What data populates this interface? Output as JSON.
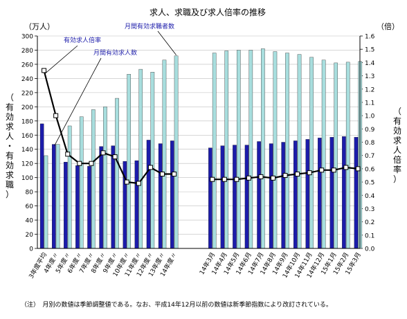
{
  "chart_data": {
    "type": "bar",
    "title": "求人、求職及び求人倍率の推移",
    "left_unit": "（万人）",
    "right_unit": "（倍）",
    "left_axis_label": [
      "（",
      "有",
      "効",
      "求",
      "人",
      "・",
      "有",
      "効",
      "求",
      "職",
      "）"
    ],
    "right_axis_label": [
      "（",
      "有",
      "効",
      "求",
      "人",
      "倍",
      "率",
      "）"
    ],
    "ylim_left": [
      0,
      300
    ],
    "ylim_right": [
      0,
      1.6
    ],
    "yticks_left": [
      "0",
      "20",
      "40",
      "60",
      "80",
      "100",
      "120",
      "140",
      "160",
      "180",
      "200",
      "220",
      "240",
      "260",
      "280",
      "300"
    ],
    "yticks_right": [
      "0.0",
      "0.1",
      "0.2",
      "0.3",
      "0.4",
      "0.5",
      "0.6",
      "0.7",
      "0.8",
      "0.9",
      "1.0",
      "1.1",
      "1.2",
      "1.3",
      "1.4",
      "1.5",
      "1.6"
    ],
    "grid": true,
    "categories_annual": [
      "3年度平均",
      "4年度〃",
      "5年度〃",
      "6年度〃",
      "7年度〃",
      "8年度〃",
      "9年度〃",
      "10年度〃",
      "11年度〃",
      "12年度〃",
      "13年度〃",
      "14年度〃"
    ],
    "categories_monthly": [
      "14年3月",
      "14年4月",
      "14年5月",
      "14年6月",
      "14年7月",
      "14年8月",
      "14年9月",
      "14年10月",
      "14年11月",
      "14年12月",
      "15年1月",
      "15年2月",
      "15年3月"
    ],
    "series": [
      {
        "name": "月間有効求人数",
        "color": "#1c1caa",
        "annual": [
          176,
          147,
          122,
          117,
          116,
          144,
          145,
          123,
          124,
          153,
          148,
          152
        ],
        "monthly": [
          142,
          145,
          146,
          146,
          151,
          148,
          150,
          152,
          154,
          156,
          157,
          158,
          157
        ]
      },
      {
        "name": "月間有効求職者数",
        "color": "#a8dede",
        "annual": [
          131,
          147,
          173,
          186,
          196,
          200,
          212,
          246,
          253,
          249,
          266,
          272
        ],
        "monthly": [
          276,
          279,
          280,
          280,
          282,
          278,
          276,
          274,
          270,
          266,
          262,
          263,
          264
        ]
      },
      {
        "name": "有効求人倍率",
        "color": "#000000",
        "annual": [
          1.34,
          1.0,
          0.71,
          0.64,
          0.64,
          0.72,
          0.69,
          0.5,
          0.49,
          0.61,
          0.56,
          0.56
        ],
        "monthly": [
          0.52,
          0.52,
          0.52,
          0.53,
          0.54,
          0.53,
          0.55,
          0.56,
          0.57,
          0.59,
          0.59,
          0.61,
          0.6
        ]
      }
    ],
    "note": "（注）　月別の数値は季節調整値である。なお、平成14年12月以前の数値は新季節指数により改訂されている。"
  }
}
